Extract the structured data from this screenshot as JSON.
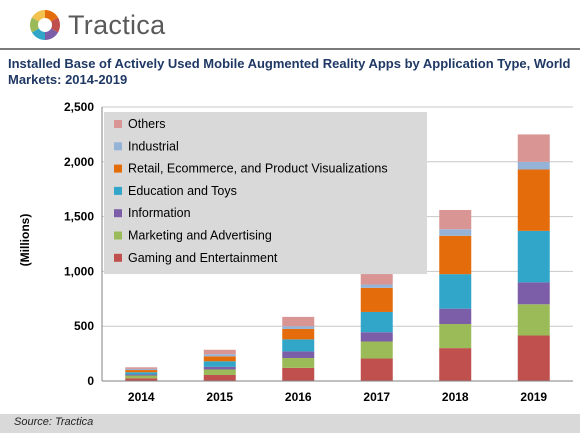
{
  "brand": {
    "name": "Tractica"
  },
  "colors": {
    "title": "#1f3864",
    "others": "#d99594",
    "industrial": "#95b3d7",
    "retail": "#e46c0a",
    "education": "#31a6c8",
    "information": "#7b5ea7",
    "marketing": "#9bbb59",
    "gaming": "#c0504d"
  },
  "chart_data": {
    "type": "bar",
    "stacked": true,
    "title": "Installed Base of Actively Used Mobile Augmented Reality Apps by Application Type, World Markets: 2014-2019",
    "xlabel": "",
    "ylabel": "(Millions)",
    "ylim": [
      0,
      2500
    ],
    "yticks": [
      "0",
      "500",
      "1,000",
      "1,500",
      "2,000",
      "2,500"
    ],
    "categories": [
      "2014",
      "2015",
      "2016",
      "2017",
      "2018",
      "2019"
    ],
    "legend_position": "top-left",
    "legend_order": [
      "Others",
      "Industrial",
      "Retail, Ecommerce, and Product Visualizations",
      "Education and Toys",
      "Information",
      "Marketing and Advertising",
      "Gaming and Entertainment"
    ],
    "series": [
      {
        "name": "Gaming and Entertainment",
        "color": "#c0504d",
        "values": [
          25,
          55,
          120,
          205,
          300,
          415
        ]
      },
      {
        "name": "Marketing and Advertising",
        "color": "#9bbb59",
        "values": [
          25,
          50,
          90,
          155,
          220,
          285
        ]
      },
      {
        "name": "Information",
        "color": "#7b5ea7",
        "values": [
          10,
          25,
          60,
          85,
          140,
          200
        ]
      },
      {
        "name": "Education and Toys",
        "color": "#31a6c8",
        "values": [
          20,
          50,
          110,
          185,
          315,
          470
        ]
      },
      {
        "name": "Retail, Ecommerce, and Product Visualizations",
        "color": "#e46c0a",
        "values": [
          20,
          45,
          95,
          220,
          350,
          560
        ]
      },
      {
        "name": "Industrial",
        "color": "#95b3d7",
        "values": [
          10,
          20,
          25,
          30,
          60,
          70
        ]
      },
      {
        "name": "Others",
        "color": "#d99594",
        "values": [
          15,
          40,
          85,
          120,
          175,
          250
        ]
      }
    ]
  },
  "source": {
    "label": "Source: Tractica"
  }
}
